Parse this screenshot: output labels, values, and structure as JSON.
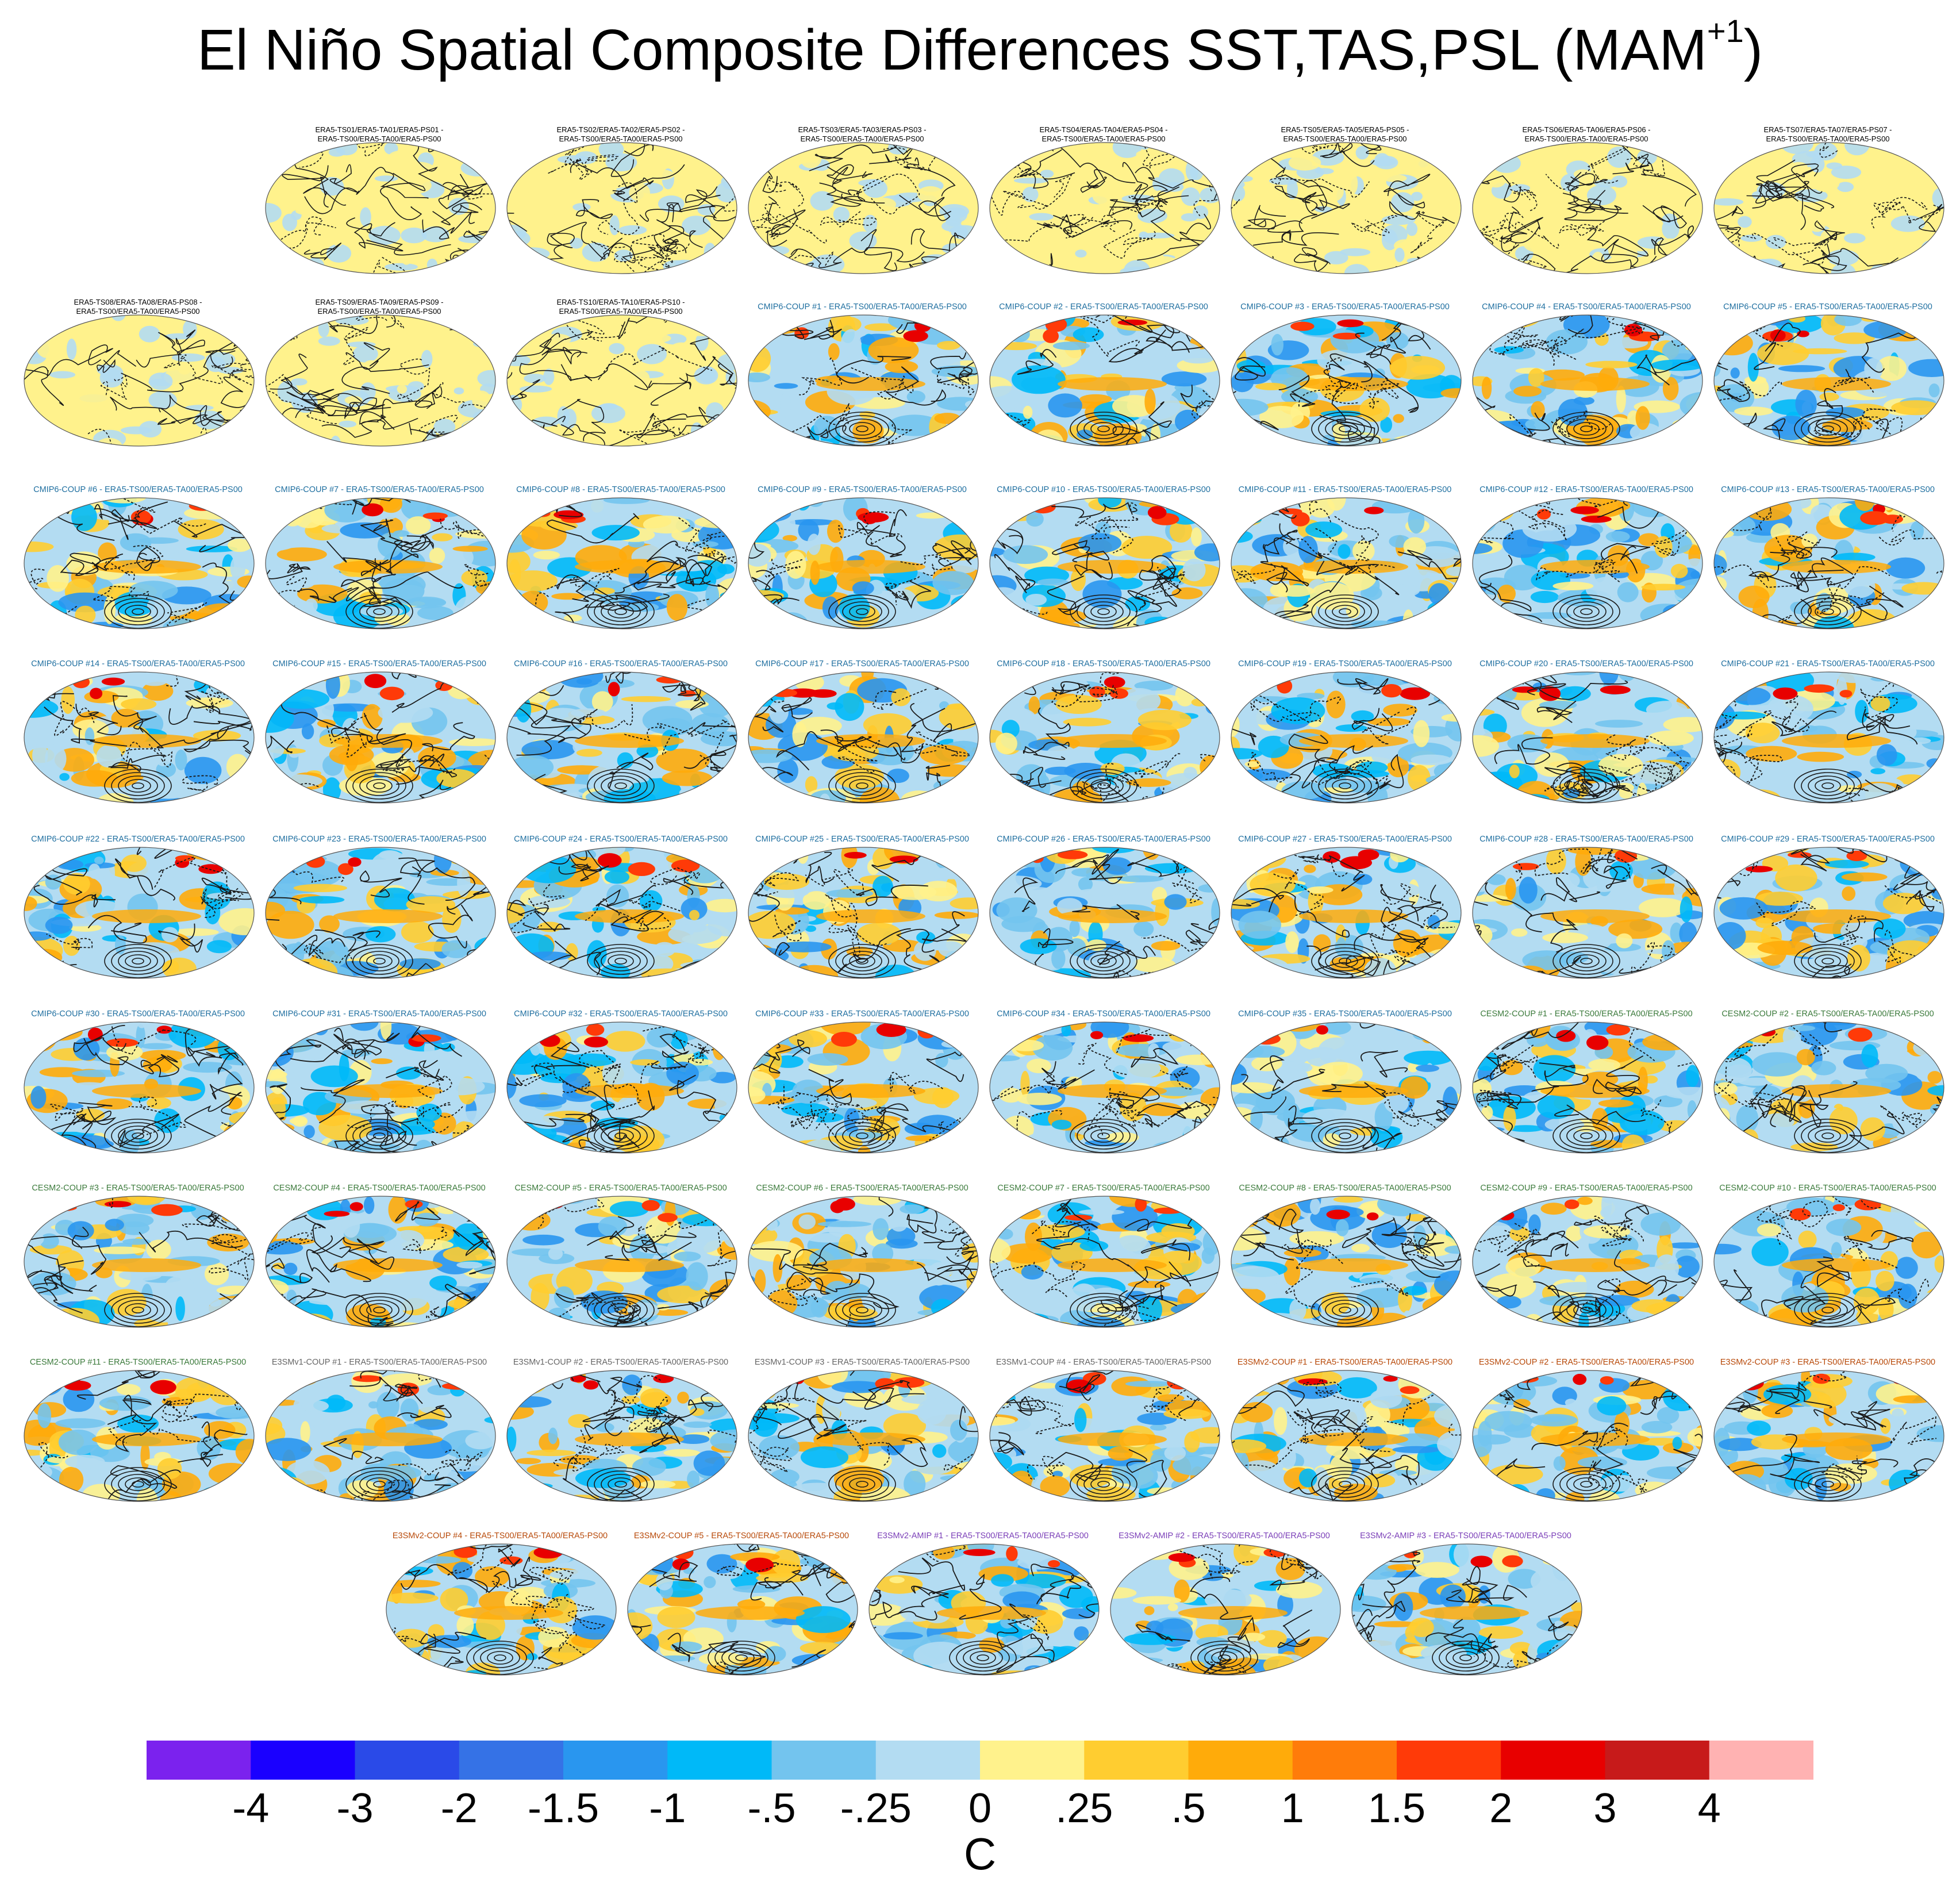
{
  "title": {
    "main": "El Niño Spatial Composite Differences SST,TAS,PSL (MAM",
    "sup": "+1",
    "close": ")"
  },
  "colors": {
    "cmip6_label": "#1f6fa0",
    "cesm2_label": "#3b7a3b",
    "e3smv1_label": "#666666",
    "e3smv2coup_label": "#b84a0a",
    "e3smv2amip_label": "#7b3fb8",
    "era5_label": "#000000"
  },
  "panels": [
    [
      "ERA5-TS01/ERA5-TA01/ERA5-PS01 -",
      "ERA5-TS00/ERA5-TA00/ERA5-PS00"
    ],
    [
      "ERA5-TS02/ERA5-TA02/ERA5-PS02 -",
      "ERA5-TS00/ERA5-TA00/ERA5-PS00"
    ],
    [
      "ERA5-TS03/ERA5-TA03/ERA5-PS03 -",
      "ERA5-TS00/ERA5-TA00/ERA5-PS00"
    ],
    [
      "ERA5-TS04/ERA5-TA04/ERA5-PS04 -",
      "ERA5-TS00/ERA5-TA00/ERA5-PS00"
    ],
    [
      "ERA5-TS05/ERA5-TA05/ERA5-PS05 -",
      "ERA5-TS00/ERA5-TA00/ERA5-PS00"
    ],
    [
      "ERA5-TS06/ERA5-TA06/ERA5-PS06 -",
      "ERA5-TS00/ERA5-TA00/ERA5-PS00"
    ],
    [
      "ERA5-TS07/ERA5-TA07/ERA5-PS07 -",
      "ERA5-TS00/ERA5-TA00/ERA5-PS00"
    ],
    [
      "ERA5-TS08/ERA5-TA08/ERA5-PS08 -",
      "ERA5-TS00/ERA5-TA00/ERA5-PS00"
    ],
    [
      "ERA5-TS09/ERA5-TA09/ERA5-PS09 -",
      "ERA5-TS00/ERA5-TA00/ERA5-PS00"
    ],
    [
      "ERA5-TS10/ERA5-TA10/ERA5-PS10 -",
      "ERA5-TS00/ERA5-TA00/ERA5-PS00"
    ],
    [
      "CMIP6-COUP  #1 - ERA5-TS00/ERA5-TA00/ERA5-PS00"
    ],
    [
      "CMIP6-COUP  #2 - ERA5-TS00/ERA5-TA00/ERA5-PS00"
    ],
    [
      "CMIP6-COUP  #3 - ERA5-TS00/ERA5-TA00/ERA5-PS00"
    ],
    [
      "CMIP6-COUP  #4 - ERA5-TS00/ERA5-TA00/ERA5-PS00"
    ],
    [
      "CMIP6-COUP  #5 - ERA5-TS00/ERA5-TA00/ERA5-PS00"
    ],
    [
      "CMIP6-COUP  #6 - ERA5-TS00/ERA5-TA00/ERA5-PS00"
    ],
    [
      "CMIP6-COUP  #7 - ERA5-TS00/ERA5-TA00/ERA5-PS00"
    ],
    [
      "CMIP6-COUP  #8 - ERA5-TS00/ERA5-TA00/ERA5-PS00"
    ],
    [
      "CMIP6-COUP  #9 - ERA5-TS00/ERA5-TA00/ERA5-PS00"
    ],
    [
      "CMIP6-COUP  #10 - ERA5-TS00/ERA5-TA00/ERA5-PS00"
    ],
    [
      "CMIP6-COUP  #11 - ERA5-TS00/ERA5-TA00/ERA5-PS00"
    ],
    [
      "CMIP6-COUP  #12 - ERA5-TS00/ERA5-TA00/ERA5-PS00"
    ],
    [
      "CMIP6-COUP  #13 - ERA5-TS00/ERA5-TA00/ERA5-PS00"
    ],
    [
      "CMIP6-COUP  #14 - ERA5-TS00/ERA5-TA00/ERA5-PS00"
    ],
    [
      "CMIP6-COUP  #15 - ERA5-TS00/ERA5-TA00/ERA5-PS00"
    ],
    [
      "CMIP6-COUP  #16 - ERA5-TS00/ERA5-TA00/ERA5-PS00"
    ],
    [
      "CMIP6-COUP  #17 - ERA5-TS00/ERA5-TA00/ERA5-PS00"
    ],
    [
      "CMIP6-COUP  #18 - ERA5-TS00/ERA5-TA00/ERA5-PS00"
    ],
    [
      "CMIP6-COUP  #19 - ERA5-TS00/ERA5-TA00/ERA5-PS00"
    ],
    [
      "CMIP6-COUP  #20 - ERA5-TS00/ERA5-TA00/ERA5-PS00"
    ],
    [
      "CMIP6-COUP  #21 - ERA5-TS00/ERA5-TA00/ERA5-PS00"
    ],
    [
      "CMIP6-COUP  #22 - ERA5-TS00/ERA5-TA00/ERA5-PS00"
    ],
    [
      "CMIP6-COUP  #23 - ERA5-TS00/ERA5-TA00/ERA5-PS00"
    ],
    [
      "CMIP6-COUP  #24 - ERA5-TS00/ERA5-TA00/ERA5-PS00"
    ],
    [
      "CMIP6-COUP  #25 - ERA5-TS00/ERA5-TA00/ERA5-PS00"
    ],
    [
      "CMIP6-COUP  #26 - ERA5-TS00/ERA5-TA00/ERA5-PS00"
    ],
    [
      "CMIP6-COUP  #27 - ERA5-TS00/ERA5-TA00/ERA5-PS00"
    ],
    [
      "CMIP6-COUP  #28 - ERA5-TS00/ERA5-TA00/ERA5-PS00"
    ],
    [
      "CMIP6-COUP  #29 - ERA5-TS00/ERA5-TA00/ERA5-PS00"
    ],
    [
      "CMIP6-COUP  #30 - ERA5-TS00/ERA5-TA00/ERA5-PS00"
    ],
    [
      "CMIP6-COUP  #31 - ERA5-TS00/ERA5-TA00/ERA5-PS00"
    ],
    [
      "CMIP6-COUP  #32 - ERA5-TS00/ERA5-TA00/ERA5-PS00"
    ],
    [
      "CMIP6-COUP  #33 - ERA5-TS00/ERA5-TA00/ERA5-PS00"
    ],
    [
      "CMIP6-COUP  #34 - ERA5-TS00/ERA5-TA00/ERA5-PS00"
    ],
    [
      "CMIP6-COUP  #35 - ERA5-TS00/ERA5-TA00/ERA5-PS00"
    ],
    [
      "CESM2-COUP  #1 - ERA5-TS00/ERA5-TA00/ERA5-PS00"
    ],
    [
      "CESM2-COUP  #2 - ERA5-TS00/ERA5-TA00/ERA5-PS00"
    ],
    [
      "CESM2-COUP  #3 - ERA5-TS00/ERA5-TA00/ERA5-PS00"
    ],
    [
      "CESM2-COUP  #4 - ERA5-TS00/ERA5-TA00/ERA5-PS00"
    ],
    [
      "CESM2-COUP  #5 - ERA5-TS00/ERA5-TA00/ERA5-PS00"
    ],
    [
      "CESM2-COUP  #6 - ERA5-TS00/ERA5-TA00/ERA5-PS00"
    ],
    [
      "CESM2-COUP  #7 - ERA5-TS00/ERA5-TA00/ERA5-PS00"
    ],
    [
      "CESM2-COUP  #8 - ERA5-TS00/ERA5-TA00/ERA5-PS00"
    ],
    [
      "CESM2-COUP  #9 - ERA5-TS00/ERA5-TA00/ERA5-PS00"
    ],
    [
      "CESM2-COUP  #10 - ERA5-TS00/ERA5-TA00/ERA5-PS00"
    ],
    [
      "CESM2-COUP  #11 - ERA5-TS00/ERA5-TA00/ERA5-PS00"
    ],
    [
      "E3SMv1-COUP #1 - ERA5-TS00/ERA5-TA00/ERA5-PS00"
    ],
    [
      "E3SMv1-COUP #2 - ERA5-TS00/ERA5-TA00/ERA5-PS00"
    ],
    [
      "E3SMv1-COUP #3 - ERA5-TS00/ERA5-TA00/ERA5-PS00"
    ],
    [
      "E3SMv1-COUP #4 - ERA5-TS00/ERA5-TA00/ERA5-PS00"
    ],
    [
      "E3SMv2-COUP #1 - ERA5-TS00/ERA5-TA00/ERA5-PS00"
    ],
    [
      "E3SMv2-COUP #2 - ERA5-TS00/ERA5-TA00/ERA5-PS00"
    ],
    [
      "E3SMv2-COUP #3 - ERA5-TS00/ERA5-TA00/ERA5-PS00"
    ],
    [
      "E3SMv2-COUP #4 - ERA5-TS00/ERA5-TA00/ERA5-PS00"
    ],
    [
      "E3SMv2-COUP #5 - ERA5-TS00/ERA5-TA00/ERA5-PS00"
    ],
    [
      "E3SMv2-AMIP #1 - ERA5-TS00/ERA5-TA00/ERA5-PS00"
    ],
    [
      "E3SMv2-AMIP #2 - ERA5-TS00/ERA5-TA00/ERA5-PS00"
    ],
    [
      "E3SMv2-AMIP #3 - ERA5-TS00/ERA5-TA00/ERA5-PS00"
    ]
  ],
  "chart_data": {
    "type": "heatmap",
    "title": "El Niño Spatial Composite Differences SST,TAS,PSL (MAM+1)",
    "colorbar": {
      "units": "C",
      "tick_labels": [
        "-4",
        "-3",
        "-2",
        "-1.5",
        "-1",
        "-.5",
        "-.25",
        "0",
        ".25",
        ".5",
        "1",
        "1.5",
        "2",
        "3",
        "4"
      ],
      "colors": [
        "#7b22ee",
        "#1a00ff",
        "#2a4ae8",
        "#3572e6",
        "#2996ef",
        "#00b9f8",
        "#73c4ee",
        "#b3dcf2",
        "#fff28c",
        "#ffcd30",
        "#ffab0a",
        "#ff7c0a",
        "#ff3a08",
        "#e80000",
        "#c71a1a",
        "#ffb2b2"
      ]
    }
  }
}
